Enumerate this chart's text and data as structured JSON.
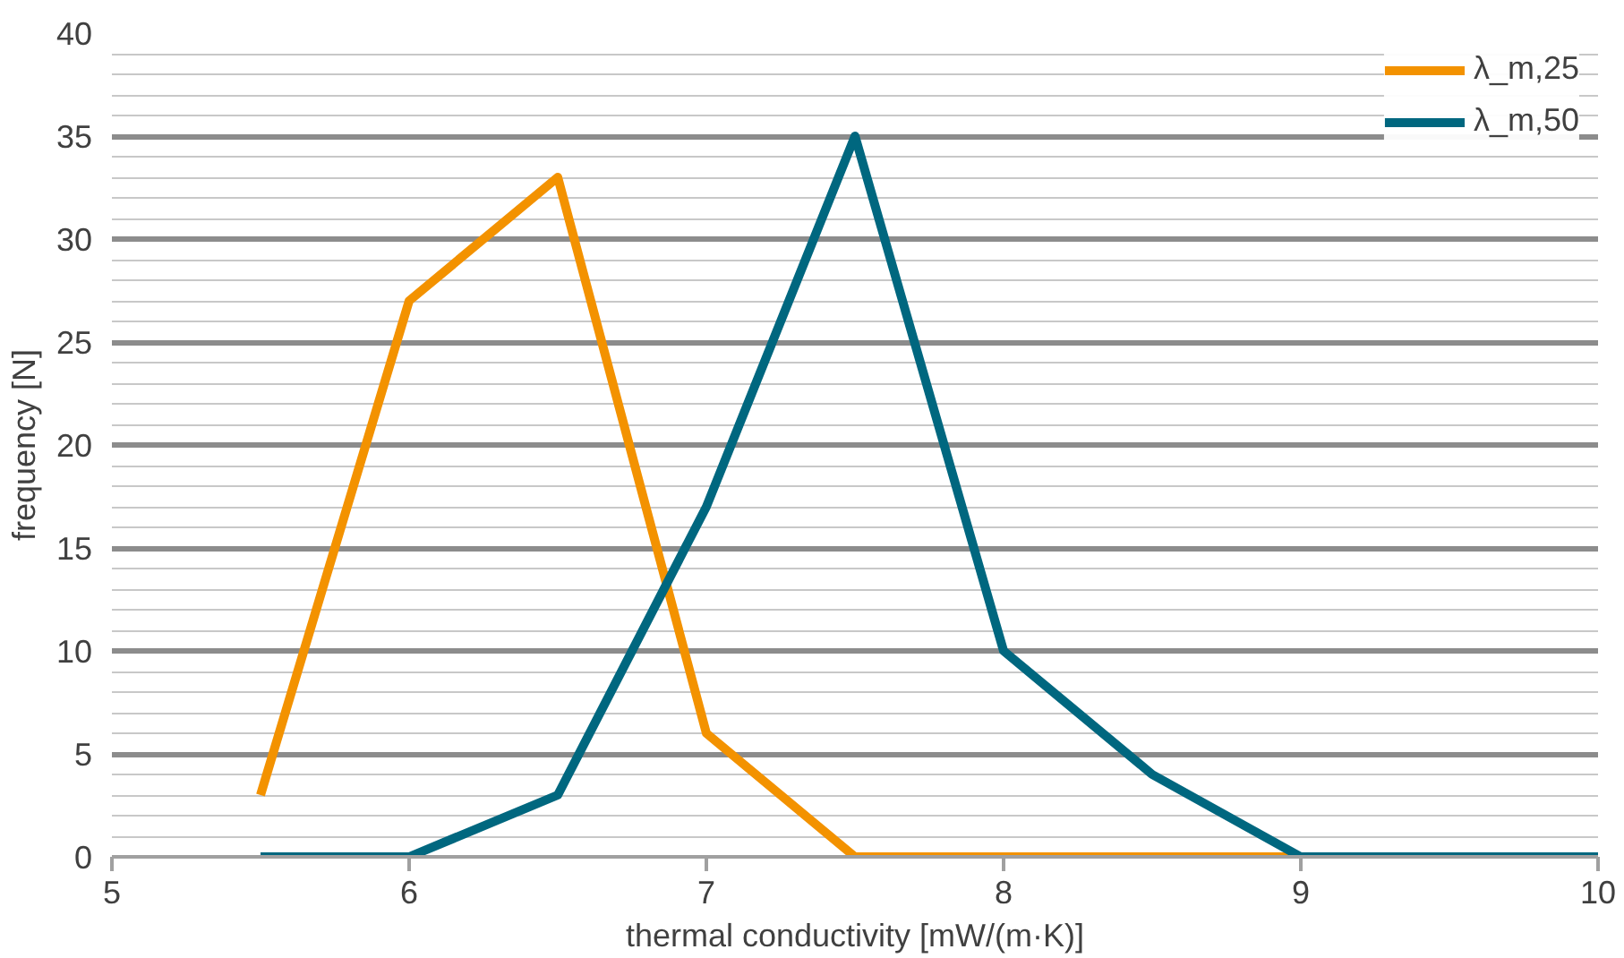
{
  "chart_data": {
    "type": "line",
    "xlabel": "thermal conductivity [mW/(m·K)]",
    "ylabel": "frequency [N]",
    "xlim": [
      5,
      10
    ],
    "xticks": [
      5,
      6,
      7,
      8,
      9,
      10
    ],
    "ylim": [
      0,
      40
    ],
    "yticks": [
      0,
      5,
      10,
      15,
      20,
      25,
      30,
      35,
      40
    ],
    "grid": "y",
    "legend": "top right",
    "marker": "none",
    "line_style": "solid",
    "series": [
      {
        "name": "λ_m,25",
        "color": "#f39200",
        "x": [
          5.5,
          6,
          6.5,
          7,
          7.5,
          8,
          8.5,
          9
        ],
        "values": [
          3,
          27,
          33,
          6,
          0,
          0,
          0,
          0
        ]
      },
      {
        "name": "λ_m,50",
        "color": "#00677f",
        "x": [
          5.5,
          6,
          6.5,
          7,
          7.5,
          8,
          8.5,
          9,
          9.5,
          10
        ],
        "values": [
          0,
          0,
          3,
          17,
          35,
          10,
          4,
          0,
          0,
          0
        ]
      }
    ]
  }
}
